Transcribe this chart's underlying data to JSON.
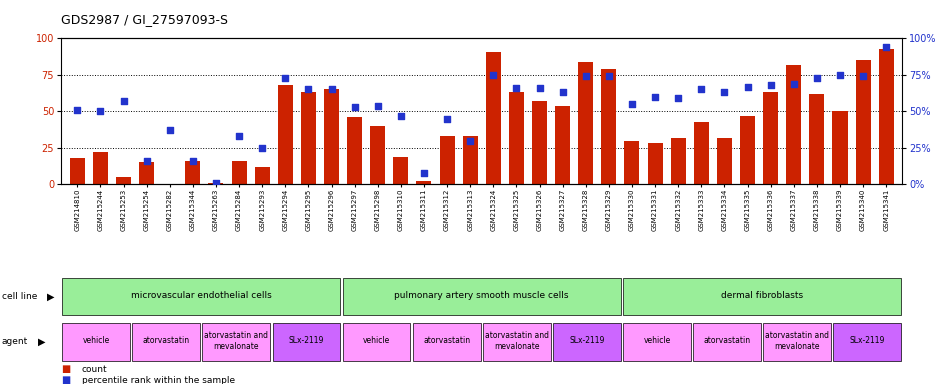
{
  "title": "GDS2987 / GI_27597093-S",
  "samples": [
    "GSM214810",
    "GSM215244",
    "GSM215253",
    "GSM215254",
    "GSM215282",
    "GSM215344",
    "GSM215263",
    "GSM215284",
    "GSM215293",
    "GSM215294",
    "GSM215295",
    "GSM215296",
    "GSM215297",
    "GSM215298",
    "GSM215310",
    "GSM215311",
    "GSM215312",
    "GSM215313",
    "GSM215324",
    "GSM215325",
    "GSM215326",
    "GSM215327",
    "GSM215328",
    "GSM215329",
    "GSM215330",
    "GSM215331",
    "GSM215332",
    "GSM215333",
    "GSM215334",
    "GSM215335",
    "GSM215336",
    "GSM215337",
    "GSM215338",
    "GSM215339",
    "GSM215340",
    "GSM215341"
  ],
  "counts": [
    18,
    22,
    5,
    15,
    0,
    16,
    1,
    16,
    12,
    68,
    63,
    65,
    46,
    40,
    19,
    2,
    33,
    33,
    91,
    63,
    57,
    54,
    84,
    79,
    30,
    28,
    32,
    43,
    32,
    47,
    63,
    82,
    62,
    50,
    85,
    93
  ],
  "percentiles": [
    51,
    50,
    57,
    16,
    37,
    16,
    1,
    33,
    25,
    73,
    65,
    65,
    53,
    54,
    47,
    8,
    45,
    30,
    75,
    66,
    66,
    63,
    74,
    74,
    55,
    60,
    59,
    65,
    63,
    67,
    68,
    69,
    73,
    75,
    74,
    94
  ],
  "cell_line_groups": [
    {
      "label": "microvascular endothelial cells",
      "start": 0,
      "end": 12
    },
    {
      "label": "pulmonary artery smooth muscle cells",
      "start": 12,
      "end": 24
    },
    {
      "label": "dermal fibroblasts",
      "start": 24,
      "end": 36
    }
  ],
  "agent_groups": [
    {
      "label": "vehicle",
      "start": 0,
      "end": 3,
      "slx": false
    },
    {
      "label": "atorvastatin",
      "start": 3,
      "end": 6,
      "slx": false
    },
    {
      "label": "atorvastatin and\nmevalonate",
      "start": 6,
      "end": 9,
      "slx": false
    },
    {
      "label": "SLx-2119",
      "start": 9,
      "end": 12,
      "slx": true
    },
    {
      "label": "vehicle",
      "start": 12,
      "end": 15,
      "slx": false
    },
    {
      "label": "atorvastatin",
      "start": 15,
      "end": 18,
      "slx": false
    },
    {
      "label": "atorvastatin and\nmevalonate",
      "start": 18,
      "end": 21,
      "slx": false
    },
    {
      "label": "SLx-2119",
      "start": 21,
      "end": 24,
      "slx": true
    },
    {
      "label": "vehicle",
      "start": 24,
      "end": 27,
      "slx": false
    },
    {
      "label": "atorvastatin",
      "start": 27,
      "end": 30,
      "slx": false
    },
    {
      "label": "atorvastatin and\nmevalonate",
      "start": 30,
      "end": 33,
      "slx": false
    },
    {
      "label": "SLx-2119",
      "start": 33,
      "end": 36,
      "slx": true
    }
  ],
  "bar_color": "#CC2200",
  "dot_color": "#2233CC",
  "cell_line_color": "#99EE99",
  "agent_normal_color": "#FF99FF",
  "agent_slx_color": "#CC66FF",
  "background_color": "#FFFFFF",
  "title_fontsize": 9,
  "ylim": [
    0,
    100
  ],
  "yticks": [
    0,
    25,
    50,
    75,
    100
  ]
}
